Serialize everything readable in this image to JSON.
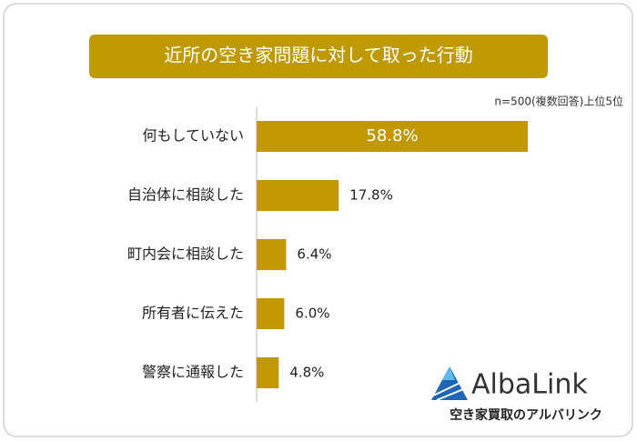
{
  "chart_data": {
    "type": "bar",
    "orientation": "horizontal",
    "title": "近所の空き家問題に対して取った行動",
    "subtitle": "n=500(複数回答)上位5位",
    "categories": [
      "何もしていない",
      "自治体に相談した",
      "町内会に相談した",
      "所有者に伝えた",
      "警察に通報した"
    ],
    "values": [
      58.8,
      17.8,
      6.4,
      6.0,
      4.8
    ],
    "value_labels": [
      "58.8%",
      "17.8%",
      "6.4%",
      "6.0%",
      "4.8%"
    ],
    "color": "#c19800"
  },
  "logo": {
    "name": "AlbaLink",
    "tagline": "空き家買取のアルバリンク"
  }
}
